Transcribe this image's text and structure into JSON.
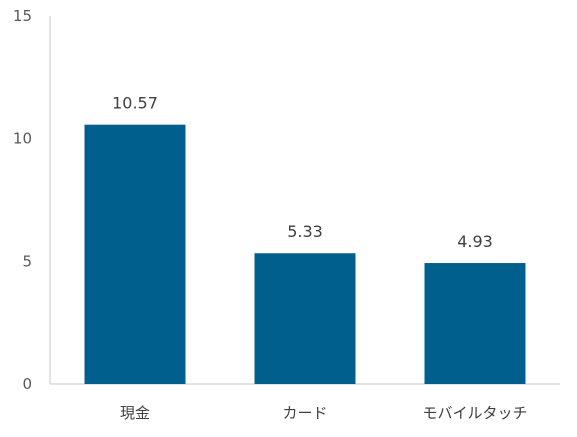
{
  "chart_data": {
    "type": "bar",
    "categories": [
      "現金",
      "カード",
      "モバイルタッチ"
    ],
    "values": [
      10.57,
      5.33,
      4.93
    ],
    "data_labels": [
      "10.57",
      "5.33",
      "4.93"
    ],
    "title": "",
    "xlabel": "",
    "ylabel": "",
    "ylim": [
      0,
      15
    ],
    "yticks": [
      0,
      5,
      10,
      15
    ],
    "ytick_labels": [
      "0",
      "5",
      "10",
      "15"
    ],
    "grid": false,
    "legend": "none",
    "bar_color": "#005F8C",
    "axis_color": "#D9D9D9"
  }
}
